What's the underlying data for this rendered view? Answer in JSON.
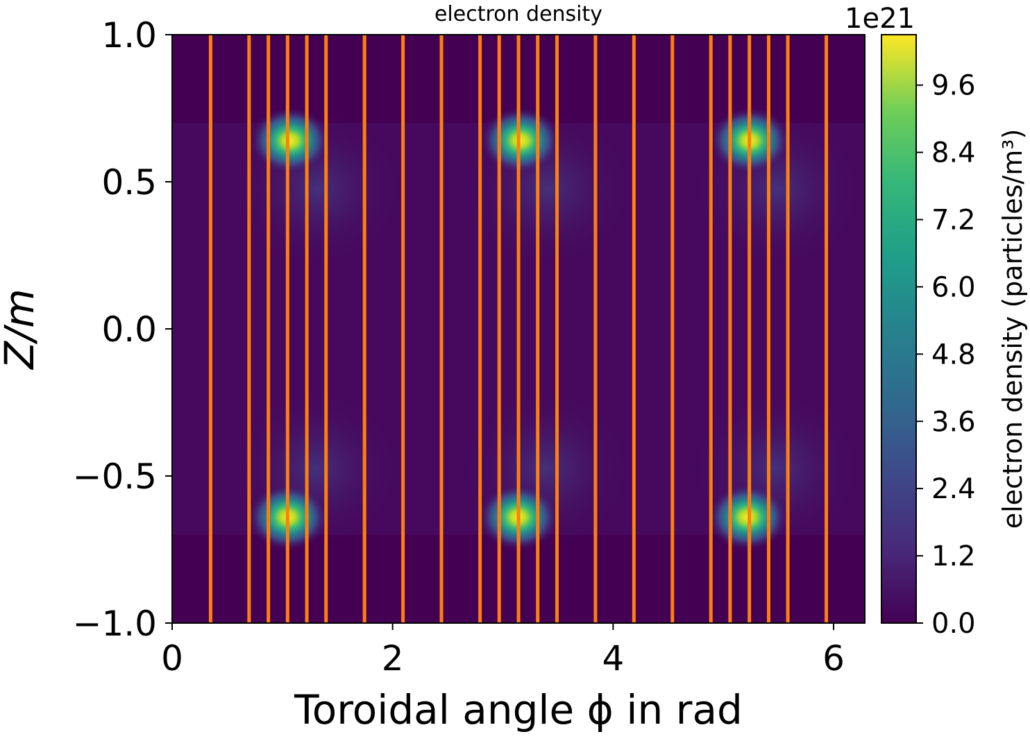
{
  "chart_data": {
    "type": "heatmap",
    "title": "electron density",
    "xlabel": "Toroidal angle ϕ in rad",
    "ylabel": "Z/m",
    "xlim": [
      0,
      6.2832
    ],
    "ylim": [
      -1.0,
      1.0
    ],
    "xticks": [
      0,
      2,
      4,
      6
    ],
    "xtick_labels": [
      "0",
      "2",
      "4",
      "6"
    ],
    "yticks": [
      1.0,
      0.5,
      0.0,
      -0.5,
      -1.0
    ],
    "ytick_labels": [
      "1.0",
      "0.5",
      "0.0",
      "−0.5",
      "−1.0"
    ],
    "grid": false,
    "colormap": "viridis",
    "colorbar": {
      "label": "electron density (particles/m³)",
      "offset_text": "1e21",
      "range": [
        0.0,
        10.5
      ],
      "ticks": [
        0.0,
        1.2,
        2.4,
        3.6,
        4.8,
        6.0,
        7.2,
        8.4,
        9.6
      ],
      "tick_labels": [
        "0.0",
        "1.2",
        "2.4",
        "3.6",
        "4.8",
        "6.0",
        "7.2",
        "8.4",
        "9.6"
      ]
    },
    "background_value": 0.2,
    "band_z_range": [
      -0.7,
      0.7
    ],
    "hotspots": [
      {
        "phi": 1.07,
        "z": 0.64,
        "value": 10.5
      },
      {
        "phi": 3.16,
        "z": 0.64,
        "value": 10.5
      },
      {
        "phi": 5.24,
        "z": 0.64,
        "value": 10.5
      },
      {
        "phi": 1.05,
        "z": -0.64,
        "value": 10.5
      },
      {
        "phi": 3.14,
        "z": -0.64,
        "value": 10.5
      },
      {
        "phi": 5.22,
        "z": -0.64,
        "value": 10.5
      }
    ],
    "vertical_lines": {
      "color": "#ff7f0e",
      "phi": [
        0.349,
        0.698,
        0.873,
        1.047,
        1.222,
        1.396,
        1.745,
        2.094,
        2.443,
        2.793,
        2.967,
        3.142,
        3.316,
        3.491,
        3.84,
        4.189,
        4.538,
        4.887,
        5.061,
        5.236,
        5.411,
        5.585,
        5.934
      ]
    }
  }
}
